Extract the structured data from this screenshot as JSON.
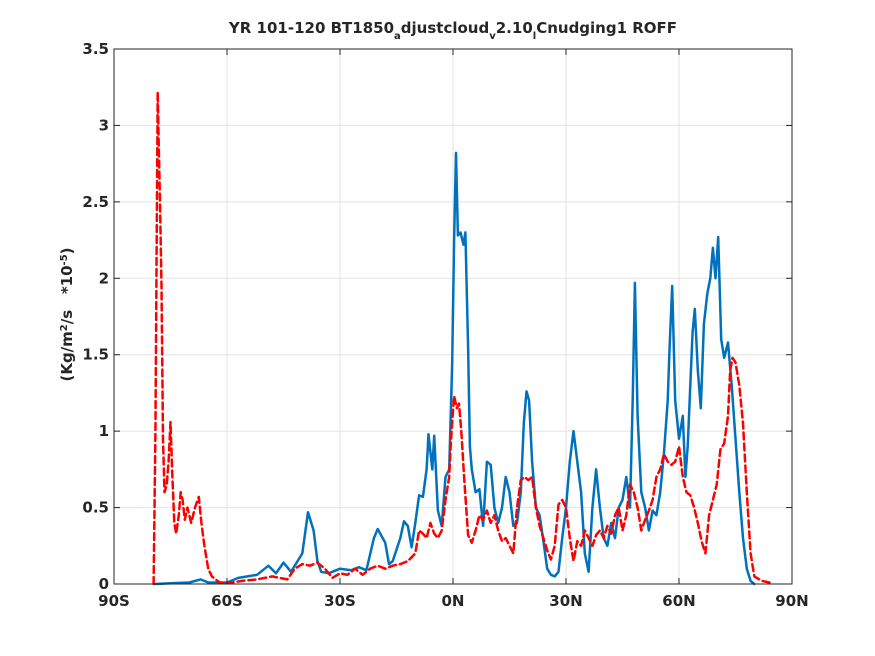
{
  "chart_data": {
    "type": "line",
    "title": {
      "parts": [
        {
          "text": "YR 101-120 BT1850",
          "shift": "none"
        },
        {
          "text": "a",
          "shift": "sub"
        },
        {
          "text": "djustcloud",
          "shift": "none"
        },
        {
          "text": "v",
          "shift": "sub"
        },
        {
          "text": "2.10",
          "shift": "none"
        },
        {
          "text": "l",
          "shift": "sub"
        },
        {
          "text": "Cnudging1 ROFF",
          "shift": "none"
        }
      ]
    },
    "ylabel": {
      "parts": [
        {
          "text": "(Kg/m",
          "shift": "none"
        },
        {
          "text": "2",
          "shift": "sup"
        },
        {
          "text": "/s   *10",
          "shift": "none"
        },
        {
          "text": "-5",
          "shift": "sup"
        },
        {
          "text": ")",
          "shift": "none"
        }
      ]
    },
    "xlabel": "",
    "xlim": [
      -90,
      90
    ],
    "ylim": [
      0,
      3.5
    ],
    "grid": true,
    "x_ticks": [
      {
        "value": -90,
        "label": "90S"
      },
      {
        "value": -60,
        "label": "60S"
      },
      {
        "value": -30,
        "label": "30S"
      },
      {
        "value": 0,
        "label": "0N"
      },
      {
        "value": 30,
        "label": "30N"
      },
      {
        "value": 60,
        "label": "60N"
      },
      {
        "value": 90,
        "label": "90N"
      }
    ],
    "y_ticks": [
      {
        "value": 0,
        "label": "0"
      },
      {
        "value": 0.5,
        "label": "0.5"
      },
      {
        "value": 1,
        "label": "1"
      },
      {
        "value": 1.5,
        "label": "1.5"
      },
      {
        "value": 2,
        "label": "2"
      },
      {
        "value": 2.5,
        "label": "2.5"
      },
      {
        "value": 3,
        "label": "3"
      },
      {
        "value": 3.5,
        "label": "3.5"
      }
    ],
    "series": [
      {
        "color": "#0072BD",
        "style": "solid",
        "points": [
          [
            -79,
            0
          ],
          [
            -75,
            0.005
          ],
          [
            -70,
            0.01
          ],
          [
            -67,
            0.03
          ],
          [
            -65,
            0.01
          ],
          [
            -60,
            0.01
          ],
          [
            -57,
            0.04
          ],
          [
            -52,
            0.06
          ],
          [
            -49,
            0.12
          ],
          [
            -47,
            0.07
          ],
          [
            -45,
            0.14
          ],
          [
            -43,
            0.08
          ],
          [
            -40,
            0.2
          ],
          [
            -38.5,
            0.47
          ],
          [
            -37,
            0.35
          ],
          [
            -36,
            0.15
          ],
          [
            -35,
            0.08
          ],
          [
            -33,
            0.07
          ],
          [
            -30,
            0.1
          ],
          [
            -27,
            0.09
          ],
          [
            -25,
            0.11
          ],
          [
            -23,
            0.09
          ],
          [
            -21,
            0.3
          ],
          [
            -20,
            0.36
          ],
          [
            -18,
            0.27
          ],
          [
            -17,
            0.13
          ],
          [
            -16,
            0.15
          ],
          [
            -14,
            0.3
          ],
          [
            -13,
            0.41
          ],
          [
            -12,
            0.38
          ],
          [
            -11,
            0.24
          ],
          [
            -10,
            0.4
          ],
          [
            -9,
            0.58
          ],
          [
            -8,
            0.57
          ],
          [
            -7,
            0.75
          ],
          [
            -6.5,
            0.98
          ],
          [
            -5.5,
            0.75
          ],
          [
            -5,
            0.97
          ],
          [
            -4,
            0.48
          ],
          [
            -3,
            0.38
          ],
          [
            -2,
            0.7
          ],
          [
            -1,
            0.75
          ],
          [
            -0.2,
            1.45
          ],
          [
            0.3,
            2.25
          ],
          [
            0.8,
            2.82
          ],
          [
            1.3,
            2.28
          ],
          [
            2,
            2.3
          ],
          [
            2.8,
            2.22
          ],
          [
            3.3,
            2.3
          ],
          [
            4,
            1.55
          ],
          [
            4.5,
            0.9
          ],
          [
            5,
            0.75
          ],
          [
            6,
            0.6
          ],
          [
            7,
            0.62
          ],
          [
            8,
            0.38
          ],
          [
            9,
            0.8
          ],
          [
            10,
            0.78
          ],
          [
            11,
            0.5
          ],
          [
            12,
            0.4
          ],
          [
            13,
            0.5
          ],
          [
            14,
            0.7
          ],
          [
            15,
            0.6
          ],
          [
            16,
            0.38
          ],
          [
            17,
            0.4
          ],
          [
            18,
            0.6
          ],
          [
            18.8,
            1.05
          ],
          [
            19.5,
            1.26
          ],
          [
            20.2,
            1.2
          ],
          [
            21,
            0.8
          ],
          [
            22,
            0.5
          ],
          [
            23,
            0.45
          ],
          [
            24,
            0.28
          ],
          [
            25,
            0.1
          ],
          [
            26,
            0.06
          ],
          [
            27,
            0.05
          ],
          [
            28,
            0.08
          ],
          [
            29,
            0.3
          ],
          [
            30,
            0.5
          ],
          [
            31,
            0.8
          ],
          [
            32,
            1.0
          ],
          [
            33,
            0.8
          ],
          [
            34,
            0.6
          ],
          [
            35,
            0.2
          ],
          [
            36,
            0.08
          ],
          [
            37,
            0.5
          ],
          [
            38,
            0.75
          ],
          [
            39,
            0.5
          ],
          [
            40,
            0.3
          ],
          [
            41,
            0.25
          ],
          [
            42,
            0.4
          ],
          [
            43,
            0.3
          ],
          [
            44,
            0.5
          ],
          [
            45,
            0.55
          ],
          [
            46,
            0.7
          ],
          [
            47,
            0.5
          ],
          [
            47.7,
            1.2
          ],
          [
            48.3,
            1.97
          ],
          [
            49,
            1.1
          ],
          [
            50,
            0.6
          ],
          [
            51,
            0.5
          ],
          [
            52,
            0.35
          ],
          [
            53,
            0.48
          ],
          [
            54,
            0.45
          ],
          [
            55,
            0.6
          ],
          [
            56,
            0.85
          ],
          [
            57,
            1.2
          ],
          [
            57.5,
            1.55
          ],
          [
            58.2,
            1.95
          ],
          [
            59,
            1.2
          ],
          [
            60,
            0.95
          ],
          [
            61,
            1.1
          ],
          [
            61.7,
            0.7
          ],
          [
            62.3,
            0.9
          ],
          [
            63,
            1.3
          ],
          [
            63.6,
            1.65
          ],
          [
            64.2,
            1.8
          ],
          [
            65,
            1.4
          ],
          [
            65.8,
            1.15
          ],
          [
            66.6,
            1.7
          ],
          [
            67.5,
            1.9
          ],
          [
            68.3,
            2.0
          ],
          [
            69,
            2.2
          ],
          [
            69.7,
            2.0
          ],
          [
            70.4,
            2.27
          ],
          [
            71.2,
            1.6
          ],
          [
            72,
            1.48
          ],
          [
            73,
            1.58
          ],
          [
            74,
            1.3
          ],
          [
            75,
            0.95
          ],
          [
            76,
            0.6
          ],
          [
            77,
            0.3
          ],
          [
            78,
            0.1
          ],
          [
            79,
            0.02
          ],
          [
            80,
            0
          ]
        ]
      },
      {
        "color": "#FF0000",
        "style": "dashed",
        "points": [
          [
            -79.5,
            0
          ],
          [
            -79,
            0.98
          ],
          [
            -78.7,
            2.15
          ],
          [
            -78.4,
            3.22
          ],
          [
            -78.1,
            2.85
          ],
          [
            -77.8,
            2.5
          ],
          [
            -77.4,
            1.95
          ],
          [
            -77,
            0.95
          ],
          [
            -76.6,
            0.6
          ],
          [
            -76,
            0.65
          ],
          [
            -75.5,
            0.8
          ],
          [
            -75,
            1.06
          ],
          [
            -74.5,
            0.7
          ],
          [
            -74,
            0.4
          ],
          [
            -73.5,
            0.33
          ],
          [
            -72.8,
            0.45
          ],
          [
            -72.3,
            0.6
          ],
          [
            -71.8,
            0.55
          ],
          [
            -71.2,
            0.42
          ],
          [
            -70.5,
            0.5
          ],
          [
            -69.5,
            0.4
          ],
          [
            -68.5,
            0.5
          ],
          [
            -67.5,
            0.57
          ],
          [
            -66.8,
            0.4
          ],
          [
            -66,
            0.25
          ],
          [
            -65,
            0.1
          ],
          [
            -64,
            0.05
          ],
          [
            -62,
            0.01
          ],
          [
            -60,
            0.005
          ],
          [
            -56,
            0.02
          ],
          [
            -52,
            0.03
          ],
          [
            -48,
            0.05
          ],
          [
            -44,
            0.03
          ],
          [
            -42,
            0.1
          ],
          [
            -40,
            0.13
          ],
          [
            -38,
            0.12
          ],
          [
            -36,
            0.14
          ],
          [
            -34,
            0.1
          ],
          [
            -32,
            0.04
          ],
          [
            -30,
            0.07
          ],
          [
            -28,
            0.06
          ],
          [
            -26,
            0.1
          ],
          [
            -24,
            0.06
          ],
          [
            -22,
            0.1
          ],
          [
            -20,
            0.12
          ],
          [
            -18,
            0.1
          ],
          [
            -16,
            0.12
          ],
          [
            -14,
            0.13
          ],
          [
            -12,
            0.15
          ],
          [
            -10,
            0.2
          ],
          [
            -9,
            0.35
          ],
          [
            -8,
            0.33
          ],
          [
            -7,
            0.3
          ],
          [
            -6,
            0.4
          ],
          [
            -5,
            0.33
          ],
          [
            -4,
            0.3
          ],
          [
            -3,
            0.35
          ],
          [
            -2,
            0.55
          ],
          [
            -1,
            0.7
          ],
          [
            -0.5,
            0.96
          ],
          [
            0.3,
            1.23
          ],
          [
            1,
            1.15
          ],
          [
            1.6,
            1.18
          ],
          [
            2.2,
            1.0
          ],
          [
            3,
            0.68
          ],
          [
            4,
            0.32
          ],
          [
            5,
            0.27
          ],
          [
            6,
            0.35
          ],
          [
            7,
            0.45
          ],
          [
            8,
            0.42
          ],
          [
            9,
            0.48
          ],
          [
            10,
            0.4
          ],
          [
            11,
            0.45
          ],
          [
            12,
            0.35
          ],
          [
            13,
            0.28
          ],
          [
            14,
            0.3
          ],
          [
            15,
            0.25
          ],
          [
            16,
            0.2
          ],
          [
            17,
            0.5
          ],
          [
            18,
            0.68
          ],
          [
            19,
            0.7
          ],
          [
            20,
            0.68
          ],
          [
            21,
            0.7
          ],
          [
            22,
            0.5
          ],
          [
            23,
            0.38
          ],
          [
            24,
            0.3
          ],
          [
            25,
            0.22
          ],
          [
            26,
            0.16
          ],
          [
            27,
            0.25
          ],
          [
            28,
            0.52
          ],
          [
            29,
            0.55
          ],
          [
            30,
            0.5
          ],
          [
            31,
            0.3
          ],
          [
            32,
            0.15
          ],
          [
            33,
            0.28
          ],
          [
            34,
            0.25
          ],
          [
            35,
            0.35
          ],
          [
            36,
            0.3
          ],
          [
            37,
            0.25
          ],
          [
            38,
            0.32
          ],
          [
            39,
            0.35
          ],
          [
            40,
            0.3
          ],
          [
            41,
            0.38
          ],
          [
            42,
            0.33
          ],
          [
            43,
            0.45
          ],
          [
            44,
            0.5
          ],
          [
            45,
            0.35
          ],
          [
            46,
            0.45
          ],
          [
            47,
            0.65
          ],
          [
            48,
            0.6
          ],
          [
            49,
            0.5
          ],
          [
            50,
            0.35
          ],
          [
            51,
            0.42
          ],
          [
            52,
            0.48
          ],
          [
            53,
            0.55
          ],
          [
            54,
            0.7
          ],
          [
            55,
            0.75
          ],
          [
            56,
            0.85
          ],
          [
            57,
            0.8
          ],
          [
            58,
            0.78
          ],
          [
            59,
            0.8
          ],
          [
            60,
            0.9
          ],
          [
            61,
            0.7
          ],
          [
            62,
            0.6
          ],
          [
            63,
            0.58
          ],
          [
            64,
            0.5
          ],
          [
            65,
            0.4
          ],
          [
            66,
            0.28
          ],
          [
            67,
            0.2
          ],
          [
            68,
            0.45
          ],
          [
            69,
            0.55
          ],
          [
            70,
            0.65
          ],
          [
            71,
            0.88
          ],
          [
            72,
            0.92
          ],
          [
            73,
            1.1
          ],
          [
            73.6,
            1.4
          ],
          [
            74.2,
            1.48
          ],
          [
            75,
            1.45
          ],
          [
            76,
            1.3
          ],
          [
            77,
            1.05
          ],
          [
            78,
            0.6
          ],
          [
            79,
            0.2
          ],
          [
            80,
            0.05
          ],
          [
            82,
            0.02
          ],
          [
            84,
            0.01
          ],
          [
            85,
            0
          ]
        ]
      }
    ]
  }
}
